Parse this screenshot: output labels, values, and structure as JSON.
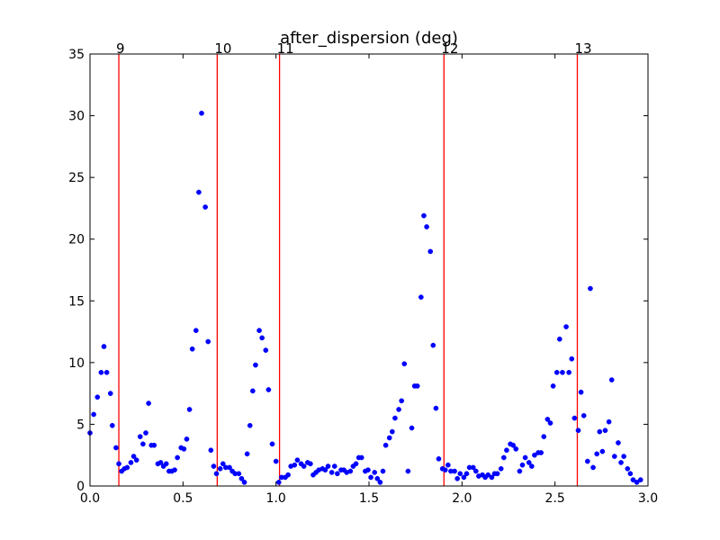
{
  "chart_data": {
    "type": "scatter",
    "title": "after_dispersion (deg)",
    "xlabel": "",
    "ylabel": "",
    "xlim": [
      0,
      3.0
    ],
    "ylim": [
      0,
      35
    ],
    "x_ticks": [
      0,
      0.5,
      1.0,
      1.5,
      2.0,
      2.5,
      3.0
    ],
    "x_tick_labels": [
      "0.0",
      "0.5",
      "1.0",
      "1.5",
      "2.0",
      "2.5",
      "3.0"
    ],
    "y_ticks": [
      0,
      5,
      10,
      15,
      20,
      25,
      30,
      35
    ],
    "y_tick_labels": [
      "0",
      "5",
      "10",
      "15",
      "20",
      "25",
      "30",
      "35"
    ],
    "grid": false,
    "marker_color": "#0000ff",
    "vline_color": "#ff0000",
    "vlines": [
      {
        "x": 0.155,
        "label": "9"
      },
      {
        "x": 0.684,
        "label": "10"
      },
      {
        "x": 1.019,
        "label": "11"
      },
      {
        "x": 1.903,
        "label": "12"
      },
      {
        "x": 2.62,
        "label": "13"
      }
    ],
    "points": [
      [
        0.0,
        4.3
      ],
      [
        0.02,
        5.8
      ],
      [
        0.04,
        7.2
      ],
      [
        0.06,
        9.2
      ],
      [
        0.075,
        11.3
      ],
      [
        0.09,
        9.2
      ],
      [
        0.11,
        7.5
      ],
      [
        0.12,
        4.9
      ],
      [
        0.14,
        3.1
      ],
      [
        0.155,
        1.8
      ],
      [
        0.17,
        1.2
      ],
      [
        0.185,
        1.4
      ],
      [
        0.2,
        1.5
      ],
      [
        0.22,
        1.9
      ],
      [
        0.235,
        2.4
      ],
      [
        0.25,
        2.1
      ],
      [
        0.27,
        4.0
      ],
      [
        0.285,
        3.4
      ],
      [
        0.3,
        4.3
      ],
      [
        0.315,
        6.7
      ],
      [
        0.33,
        3.3
      ],
      [
        0.345,
        3.3
      ],
      [
        0.365,
        1.8
      ],
      [
        0.38,
        1.9
      ],
      [
        0.395,
        1.6
      ],
      [
        0.41,
        1.8
      ],
      [
        0.425,
        1.2
      ],
      [
        0.44,
        1.2
      ],
      [
        0.455,
        1.3
      ],
      [
        0.47,
        2.3
      ],
      [
        0.49,
        3.1
      ],
      [
        0.505,
        3.0
      ],
      [
        0.52,
        3.8
      ],
      [
        0.535,
        6.2
      ],
      [
        0.55,
        11.1
      ],
      [
        0.57,
        12.6
      ],
      [
        0.585,
        23.8
      ],
      [
        0.6,
        30.2
      ],
      [
        0.62,
        22.6
      ],
      [
        0.635,
        11.7
      ],
      [
        0.65,
        2.9
      ],
      [
        0.665,
        1.6
      ],
      [
        0.68,
        1.0
      ],
      [
        0.7,
        1.4
      ],
      [
        0.715,
        1.8
      ],
      [
        0.73,
        1.5
      ],
      [
        0.75,
        1.5
      ],
      [
        0.765,
        1.2
      ],
      [
        0.78,
        1.0
      ],
      [
        0.8,
        1.0
      ],
      [
        0.815,
        0.6
      ],
      [
        0.83,
        0.3
      ],
      [
        0.845,
        2.6
      ],
      [
        0.86,
        4.9
      ],
      [
        0.875,
        7.7
      ],
      [
        0.89,
        9.8
      ],
      [
        0.91,
        12.6
      ],
      [
        0.925,
        12.0
      ],
      [
        0.945,
        11.0
      ],
      [
        0.96,
        7.8
      ],
      [
        0.98,
        3.4
      ],
      [
        1.0,
        2.0
      ],
      [
        1.015,
        0.3
      ],
      [
        1.03,
        0.7
      ],
      [
        1.05,
        0.7
      ],
      [
        1.065,
        0.9
      ],
      [
        1.08,
        1.6
      ],
      [
        1.1,
        1.7
      ],
      [
        1.115,
        2.1
      ],
      [
        1.135,
        1.8
      ],
      [
        1.15,
        1.6
      ],
      [
        1.17,
        1.9
      ],
      [
        1.185,
        1.8
      ],
      [
        1.2,
        0.9
      ],
      [
        1.215,
        1.1
      ],
      [
        1.23,
        1.3
      ],
      [
        1.25,
        1.4
      ],
      [
        1.265,
        1.3
      ],
      [
        1.28,
        1.6
      ],
      [
        1.3,
        1.1
      ],
      [
        1.315,
        1.6
      ],
      [
        1.33,
        1.0
      ],
      [
        1.35,
        1.3
      ],
      [
        1.365,
        1.3
      ],
      [
        1.38,
        1.1
      ],
      [
        1.4,
        1.2
      ],
      [
        1.415,
        1.6
      ],
      [
        1.43,
        1.8
      ],
      [
        1.445,
        2.3
      ],
      [
        1.46,
        2.3
      ],
      [
        1.48,
        1.2
      ],
      [
        1.495,
        1.3
      ],
      [
        1.51,
        0.7
      ],
      [
        1.53,
        1.1
      ],
      [
        1.545,
        0.6
      ],
      [
        1.56,
        0.3
      ],
      [
        1.575,
        1.2
      ],
      [
        1.59,
        3.3
      ],
      [
        1.61,
        3.9
      ],
      [
        1.625,
        4.4
      ],
      [
        1.64,
        5.5
      ],
      [
        1.66,
        6.2
      ],
      [
        1.675,
        6.9
      ],
      [
        1.69,
        9.9
      ],
      [
        1.71,
        1.2
      ],
      [
        1.73,
        4.7
      ],
      [
        1.745,
        8.1
      ],
      [
        1.76,
        8.1
      ],
      [
        1.78,
        15.3
      ],
      [
        1.795,
        21.9
      ],
      [
        1.81,
        21.0
      ],
      [
        1.83,
        19.0
      ],
      [
        1.845,
        11.4
      ],
      [
        1.86,
        6.3
      ],
      [
        1.875,
        2.2
      ],
      [
        1.895,
        1.4
      ],
      [
        1.91,
        1.3
      ],
      [
        1.925,
        1.7
      ],
      [
        1.94,
        1.2
      ],
      [
        1.96,
        1.2
      ],
      [
        1.975,
        0.6
      ],
      [
        1.99,
        1.0
      ],
      [
        2.01,
        0.7
      ],
      [
        2.025,
        1.0
      ],
      [
        2.04,
        1.5
      ],
      [
        2.06,
        1.5
      ],
      [
        2.075,
        1.2
      ],
      [
        2.09,
        0.8
      ],
      [
        2.11,
        0.9
      ],
      [
        2.125,
        0.7
      ],
      [
        2.14,
        0.9
      ],
      [
        2.16,
        0.7
      ],
      [
        2.175,
        1.0
      ],
      [
        2.19,
        1.0
      ],
      [
        2.21,
        1.4
      ],
      [
        2.225,
        2.3
      ],
      [
        2.24,
        2.9
      ],
      [
        2.26,
        3.4
      ],
      [
        2.275,
        3.3
      ],
      [
        2.29,
        3.0
      ],
      [
        2.31,
        1.2
      ],
      [
        2.325,
        1.7
      ],
      [
        2.34,
        2.3
      ],
      [
        2.36,
        1.9
      ],
      [
        2.375,
        1.6
      ],
      [
        2.39,
        2.5
      ],
      [
        2.41,
        2.7
      ],
      [
        2.425,
        2.7
      ],
      [
        2.44,
        4.0
      ],
      [
        2.46,
        5.4
      ],
      [
        2.475,
        5.1
      ],
      [
        2.49,
        8.1
      ],
      [
        2.51,
        9.2
      ],
      [
        2.525,
        11.9
      ],
      [
        2.54,
        9.2
      ],
      [
        2.56,
        12.9
      ],
      [
        2.575,
        9.2
      ],
      [
        2.59,
        10.3
      ],
      [
        2.605,
        5.5
      ],
      [
        2.625,
        4.5
      ],
      [
        2.64,
        7.6
      ],
      [
        2.655,
        5.7
      ],
      [
        2.675,
        2.0
      ],
      [
        2.69,
        16.0
      ],
      [
        2.705,
        1.5
      ],
      [
        2.725,
        2.6
      ],
      [
        2.74,
        4.4
      ],
      [
        2.755,
        2.8
      ],
      [
        2.77,
        4.5
      ],
      [
        2.79,
        5.2
      ],
      [
        2.805,
        8.6
      ],
      [
        2.82,
        2.4
      ],
      [
        2.84,
        3.5
      ],
      [
        2.855,
        1.9
      ],
      [
        2.87,
        2.4
      ],
      [
        2.89,
        1.4
      ],
      [
        2.905,
        1.0
      ],
      [
        2.92,
        0.5
      ],
      [
        2.94,
        0.3
      ],
      [
        2.96,
        0.5
      ]
    ]
  }
}
